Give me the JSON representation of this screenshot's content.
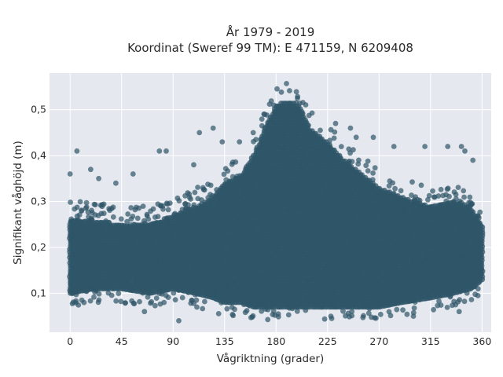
{
  "chart_data": {
    "type": "scatter",
    "title": "År 1979 - 2019",
    "subtitle": "Koordinat (Sweref 99 TM): E 471159, N 6209408",
    "xlabel": "Vågriktning (grader)",
    "ylabel": "Signifikant våghöjd (m)",
    "xlim": [
      -18,
      368
    ],
    "ylim": [
      0.015,
      0.58
    ],
    "x_ticks": [
      0,
      45,
      90,
      135,
      180,
      225,
      270,
      315,
      360
    ],
    "x_tick_labels": [
      "0",
      "45",
      "90",
      "135",
      "180",
      "225",
      "270",
      "315",
      "360"
    ],
    "y_ticks": [
      0.1,
      0.2,
      0.3,
      0.4,
      0.5
    ],
    "y_tick_labels": [
      "0,1",
      "0,2",
      "0,3",
      "0,4",
      "0,5"
    ],
    "grid": true,
    "marker_color": "#2f5668",
    "plot_background": "#e5e8ef",
    "envelope_by_direction": [
      {
        "x": 0,
        "low": 0.07,
        "high": 0.3
      },
      {
        "x": 20,
        "low": 0.08,
        "high": 0.3
      },
      {
        "x": 45,
        "low": 0.08,
        "high": 0.29
      },
      {
        "x": 70,
        "low": 0.07,
        "high": 0.29
      },
      {
        "x": 90,
        "low": 0.08,
        "high": 0.31
      },
      {
        "x": 110,
        "low": 0.07,
        "high": 0.33
      },
      {
        "x": 125,
        "low": 0.06,
        "high": 0.35
      },
      {
        "x": 135,
        "low": 0.05,
        "high": 0.38
      },
      {
        "x": 150,
        "low": 0.05,
        "high": 0.4
      },
      {
        "x": 160,
        "low": 0.04,
        "high": 0.44
      },
      {
        "x": 170,
        "low": 0.04,
        "high": 0.5
      },
      {
        "x": 180,
        "low": 0.04,
        "high": 0.55
      },
      {
        "x": 190,
        "low": 0.04,
        "high": 0.56
      },
      {
        "x": 200,
        "low": 0.04,
        "high": 0.55
      },
      {
        "x": 210,
        "low": 0.04,
        "high": 0.5
      },
      {
        "x": 225,
        "low": 0.04,
        "high": 0.47
      },
      {
        "x": 240,
        "low": 0.04,
        "high": 0.43
      },
      {
        "x": 255,
        "low": 0.04,
        "high": 0.4
      },
      {
        "x": 270,
        "low": 0.04,
        "high": 0.37
      },
      {
        "x": 290,
        "low": 0.05,
        "high": 0.35
      },
      {
        "x": 315,
        "low": 0.06,
        "high": 0.33
      },
      {
        "x": 335,
        "low": 0.07,
        "high": 0.34
      },
      {
        "x": 350,
        "low": 0.08,
        "high": 0.33
      },
      {
        "x": 360,
        "low": 0.1,
        "high": 0.29
      }
    ],
    "outlier_points": [
      {
        "x": 6,
        "y": 0.41
      },
      {
        "x": 0,
        "y": 0.36
      },
      {
        "x": 18,
        "y": 0.37
      },
      {
        "x": 25,
        "y": 0.35
      },
      {
        "x": 40,
        "y": 0.34
      },
      {
        "x": 55,
        "y": 0.36
      },
      {
        "x": 78,
        "y": 0.41
      },
      {
        "x": 84,
        "y": 0.41
      },
      {
        "x": 108,
        "y": 0.38
      },
      {
        "x": 113,
        "y": 0.45
      },
      {
        "x": 125,
        "y": 0.46
      },
      {
        "x": 133,
        "y": 0.43
      },
      {
        "x": 148,
        "y": 0.43
      },
      {
        "x": 160,
        "y": 0.45
      },
      {
        "x": 170,
        "y": 0.49
      },
      {
        "x": 178,
        "y": 0.51
      },
      {
        "x": 232,
        "y": 0.47
      },
      {
        "x": 245,
        "y": 0.46
      },
      {
        "x": 250,
        "y": 0.44
      },
      {
        "x": 265,
        "y": 0.44
      },
      {
        "x": 283,
        "y": 0.42
      },
      {
        "x": 310,
        "y": 0.42
      },
      {
        "x": 330,
        "y": 0.42
      },
      {
        "x": 345,
        "y": 0.41
      },
      {
        "x": 352,
        "y": 0.39
      },
      {
        "x": 342,
        "y": 0.42
      },
      {
        "x": 95,
        "y": 0.04
      },
      {
        "x": 65,
        "y": 0.06
      },
      {
        "x": 300,
        "y": 0.05
      },
      {
        "x": 340,
        "y": 0.06
      }
    ]
  }
}
